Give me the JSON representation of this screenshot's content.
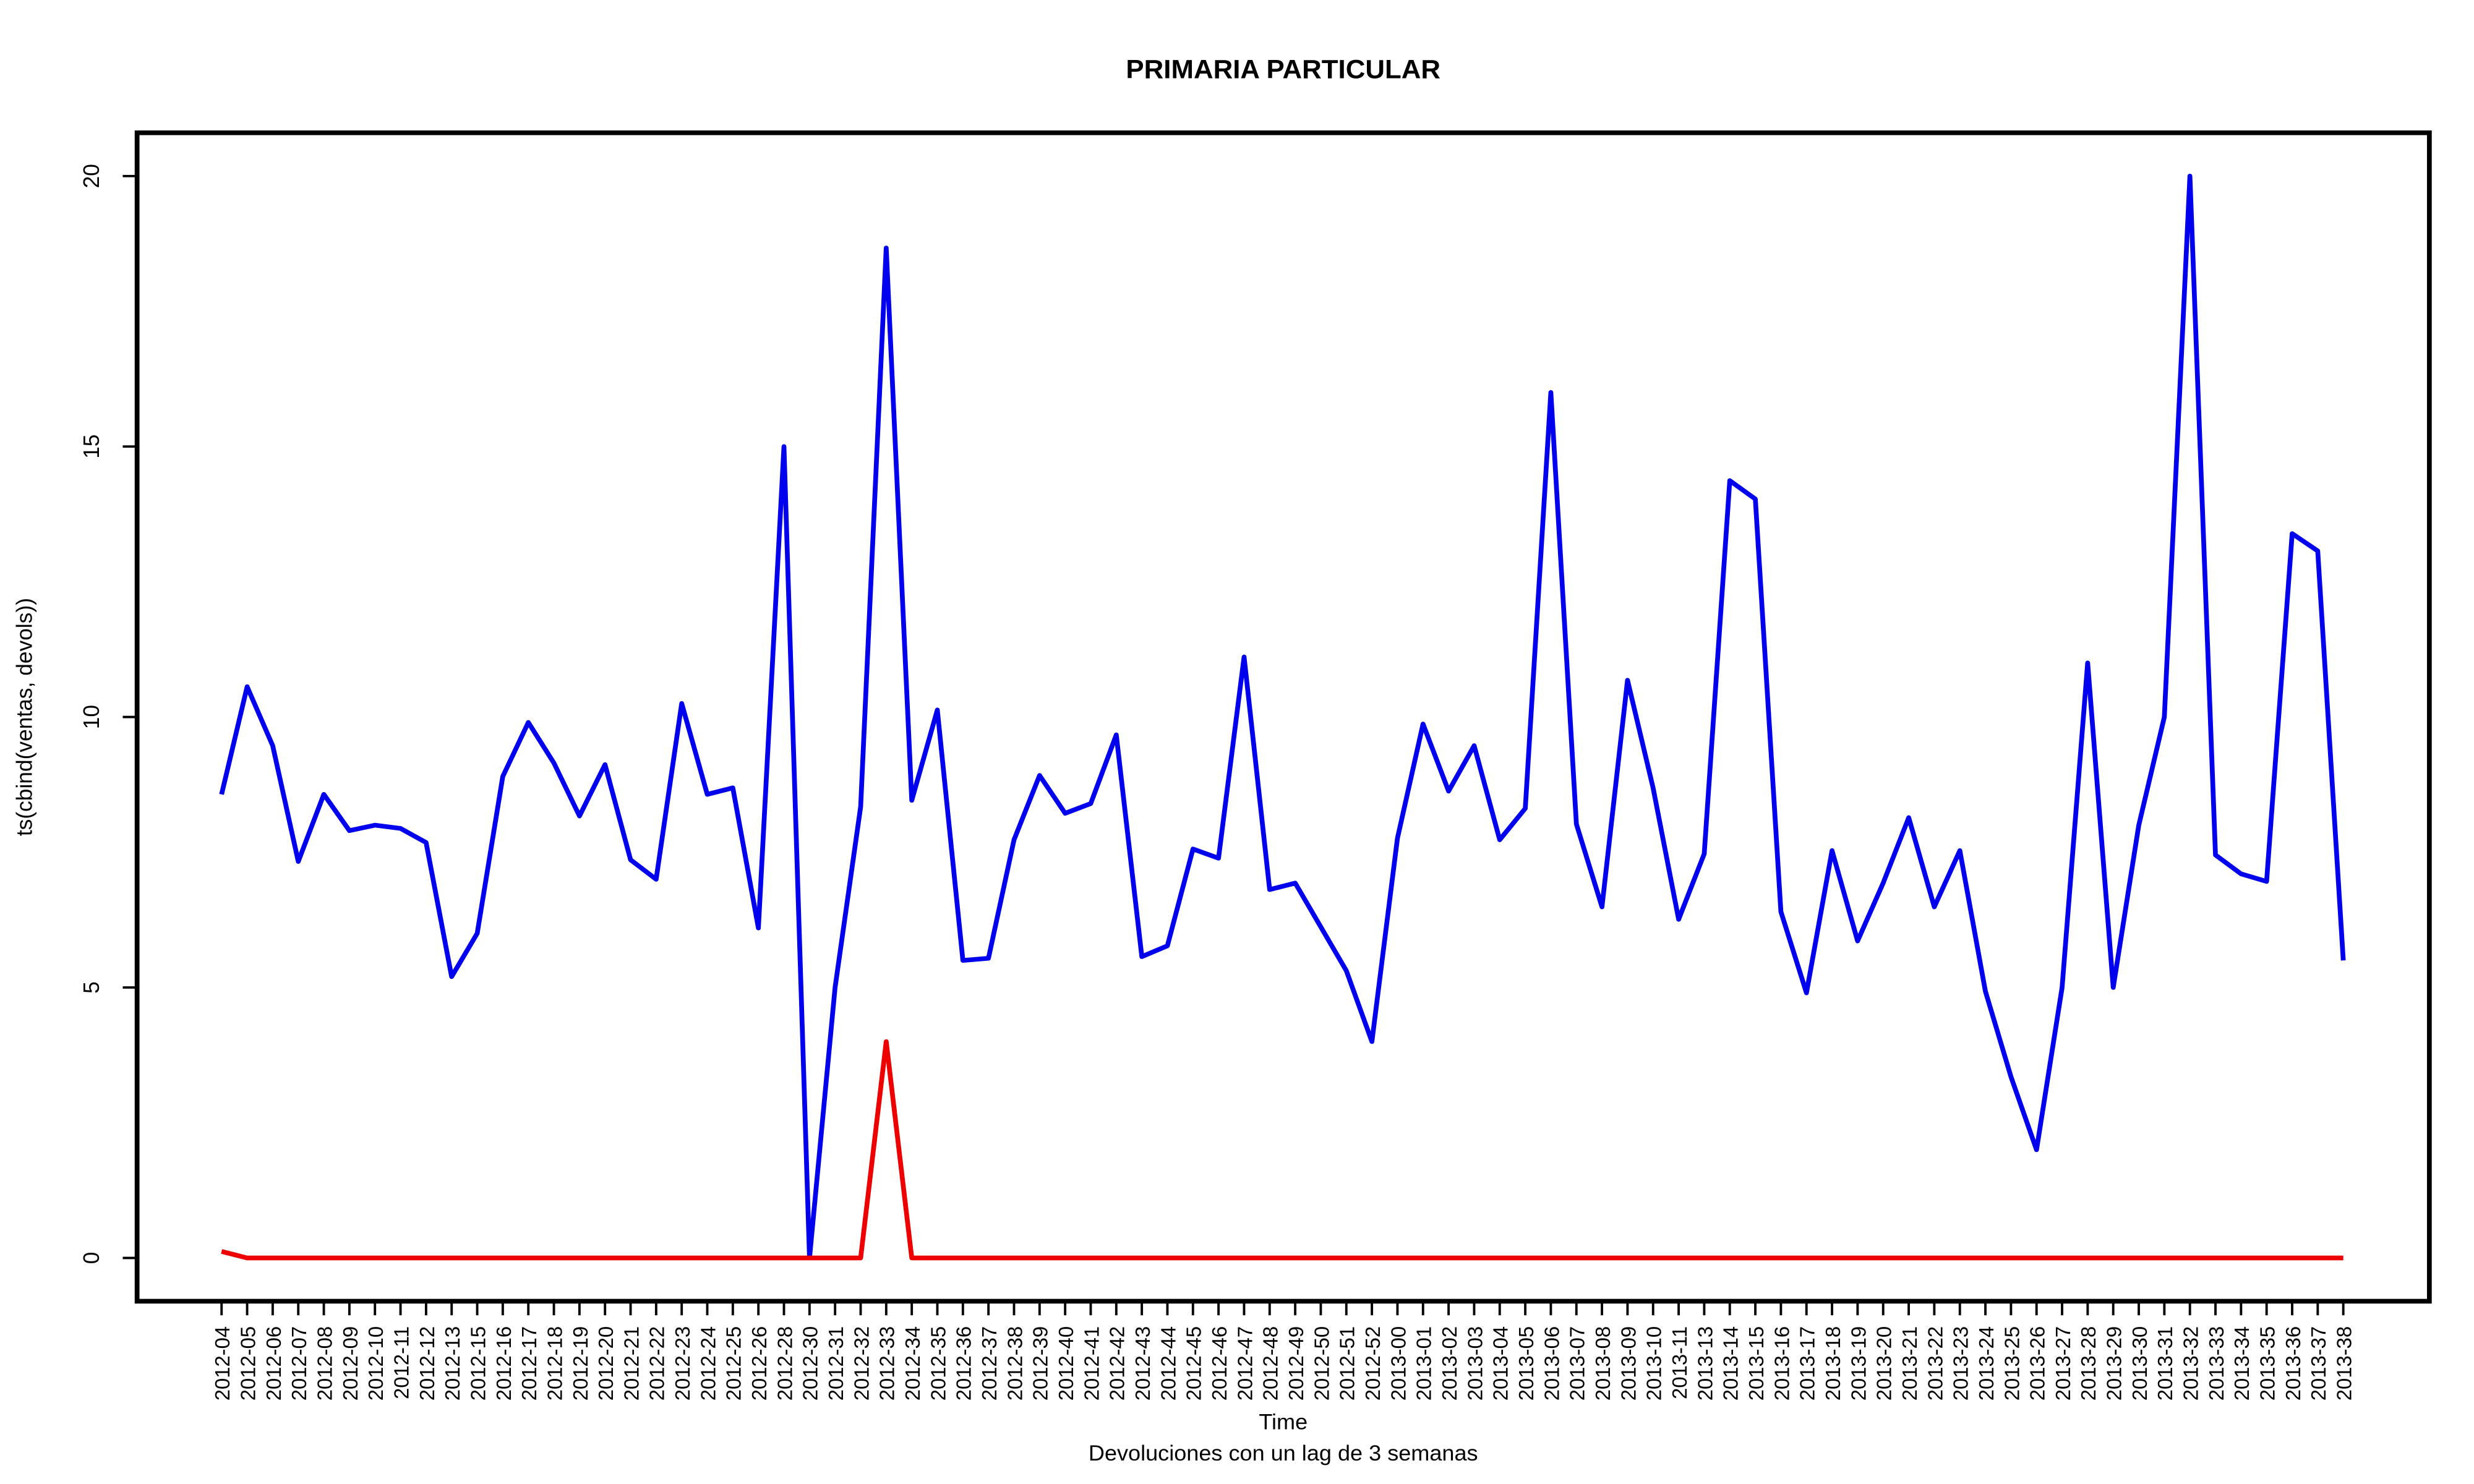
{
  "chart_data": {
    "type": "line",
    "title": "PRIMARIA PARTICULAR",
    "y_label": "ts(cbind(ventas, devols))",
    "x_label": "Time",
    "caption": "Devoluciones con un lag de 3 semanas",
    "categories": [
      "2012-04",
      "2012-05",
      "2012-06",
      "2012-07",
      "2012-08",
      "2012-09",
      "2012-10",
      "2012-11",
      "2012-12",
      "2012-13",
      "2012-15",
      "2012-16",
      "2012-17",
      "2012-18",
      "2012-19",
      "2012-20",
      "2012-21",
      "2012-22",
      "2012-23",
      "2012-24",
      "2012-25",
      "2012-26",
      "2012-28",
      "2012-30",
      "2012-31",
      "2012-32",
      "2012-33",
      "2012-34",
      "2012-35",
      "2012-36",
      "2012-37",
      "2012-38",
      "2012-39",
      "2012-40",
      "2012-41",
      "2012-42",
      "2012-43",
      "2012-44",
      "2012-45",
      "2012-46",
      "2012-47",
      "2012-48",
      "2012-49",
      "2012-50",
      "2012-51",
      "2012-52",
      "2013-00",
      "2013-01",
      "2013-02",
      "2013-03",
      "2013-04",
      "2013-05",
      "2013-06",
      "2013-07",
      "2013-08",
      "2013-09",
      "2013-10",
      "2013-11",
      "2013-13",
      "2013-14",
      "2013-15",
      "2013-16",
      "2013-17",
      "2013-18",
      "2013-19",
      "2013-20",
      "2013-21",
      "2013-22",
      "2013-23",
      "2013-24",
      "2013-25",
      "2013-26",
      "2013-27",
      "2013-28",
      "2013-29",
      "2013-30",
      "2013-31",
      "2013-32",
      "2013-33",
      "2013-34",
      "2013-35",
      "2013-36",
      "2013-37",
      "2013-38"
    ],
    "series": [
      {
        "color": "#0000ee",
        "values": [
          8.57,
          10.56,
          9.47,
          7.33,
          8.57,
          7.9,
          8.0,
          7.94,
          7.68,
          5.2,
          6.0,
          8.9,
          9.9,
          9.15,
          8.17,
          9.12,
          7.36,
          7.0,
          10.25,
          8.57,
          8.69,
          6.1,
          15.0,
          0,
          5.0,
          8.34,
          18.67,
          8.46,
          10.13,
          5.5,
          5.54,
          7.73,
          8.92,
          8.22,
          8.4,
          9.67,
          5.57,
          5.77,
          7.56,
          7.39,
          11.11,
          6.81,
          6.93,
          6.12,
          5.31,
          4.0,
          7.76,
          9.87,
          8.63,
          9.47,
          7.73,
          8.31,
          16.0,
          8.02,
          6.49,
          10.68,
          8.69,
          6.26,
          7.47,
          14.37,
          14.03,
          6.4,
          4.9,
          7.53,
          5.86,
          6.93,
          8.14,
          6.49,
          7.53,
          4.93,
          3.35,
          2.0,
          5.0,
          11.0,
          5.0,
          8.0,
          10.0,
          20.0,
          7.45,
          7.1,
          6.96,
          13.39,
          13.07,
          5.5
        ]
      },
      {
        "color": "#ee0000",
        "values": [
          0.12,
          0,
          0,
          0,
          0,
          0,
          0,
          0,
          0,
          0,
          0,
          0,
          0,
          0,
          0,
          0,
          0,
          0,
          0,
          0,
          0,
          0,
          0,
          0,
          0,
          0,
          4,
          0,
          0,
          0,
          0,
          0,
          0,
          0,
          0,
          0,
          0,
          0,
          0,
          0,
          0,
          0,
          0,
          0,
          0,
          0,
          0,
          0,
          0,
          0,
          0,
          0,
          0,
          0,
          0,
          0,
          0,
          0,
          0,
          0,
          0,
          0,
          0,
          0,
          0,
          0,
          0,
          0,
          0,
          0,
          0,
          0,
          0,
          0,
          0,
          0,
          0,
          0,
          0,
          0,
          0,
          0,
          0,
          0
        ]
      }
    ],
    "ylim": [
      -0.8,
      20.8
    ],
    "yticks": [
      0,
      5,
      10,
      15,
      20
    ]
  }
}
